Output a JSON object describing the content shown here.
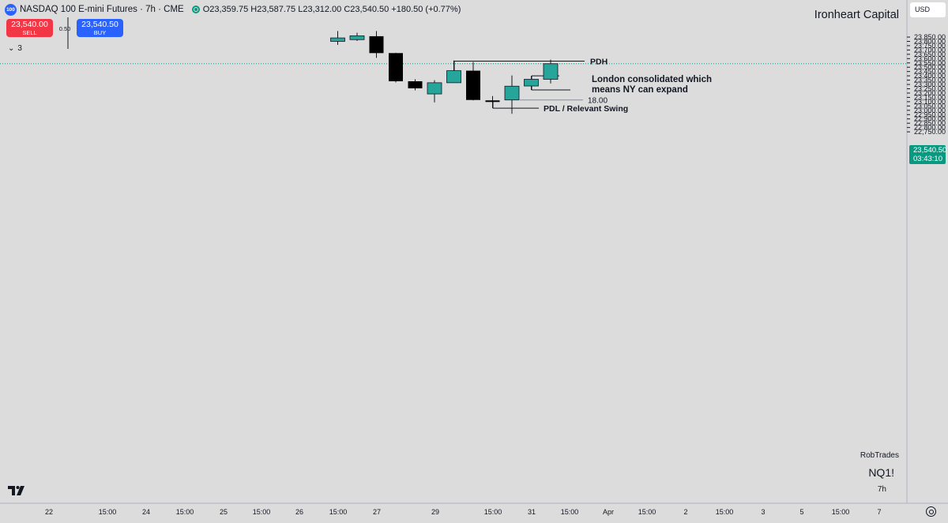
{
  "header": {
    "symbol_badge": "100",
    "title": "NASDAQ 100 E-mini Futures · 7h · CME",
    "ohlc": {
      "open": "O23,359.75",
      "high": "H23,587.75",
      "low": "L23,312.00",
      "close": "C23,540.50",
      "change": "+180.50 (+0.77%)"
    }
  },
  "trade": {
    "sell_price": "23,540.00",
    "sell_label": "SELL",
    "spread": "0.50",
    "buy_price": "23,540.50",
    "buy_label": "BUY",
    "indicators_count": "3"
  },
  "brand": "Ironheart Capital",
  "currency": "USD",
  "last_price": {
    "price": "23,540.50",
    "countdown": "03:43:10"
  },
  "watermark": {
    "author": "RobTrades",
    "symbol": "NQ1!",
    "interval": "7h"
  },
  "colors": {
    "background": "#dcdcdc",
    "up": "#26a69a",
    "down": "#000000",
    "sell": "#f23645",
    "buy": "#2962ff",
    "last_price": "#089981"
  },
  "chart_data": {
    "type": "candlestick",
    "y_ticks": [
      23850,
      23800,
      23750,
      23700,
      23650,
      23600,
      23550,
      23500,
      23450,
      23400,
      23350,
      23300,
      23250,
      23200,
      23150,
      23100,
      23050,
      23000,
      22950,
      22900,
      22850,
      22800,
      22750
    ],
    "y_tick_labels": [
      "23,850.00",
      "23,800.00",
      "23,750.00",
      "23,700.00",
      "23,650.00",
      "23,600.00",
      "23,550.00",
      "23,500.00",
      "23,450.00",
      "23,400.00",
      "23,350.00",
      "23,300.00",
      "23,250.00",
      "23,200.00",
      "23,150.00",
      "23,100.00",
      "23,050.00",
      "23,000.00",
      "22,950.00",
      "22,900.00",
      "22,850.00",
      "22,800.00",
      "22,750.00"
    ],
    "x_ticks": [
      "22",
      "15:00",
      "24",
      "15:00",
      "25",
      "15:00",
      "26",
      "15:00",
      "27",
      "29",
      "15:00",
      "31",
      "15:00",
      "Apr",
      "15:00",
      "2",
      "15:00",
      "3",
      "5",
      "15:00",
      "7"
    ],
    "candles": [
      {
        "o": 23800,
        "h": 23920,
        "l": 23760,
        "c": 23840
      },
      {
        "o": 23820,
        "h": 23900,
        "l": 23805,
        "c": 23865
      },
      {
        "o": 23860,
        "h": 23920,
        "l": 23608,
        "c": 23664
      },
      {
        "o": 23664,
        "h": 23668,
        "l": 23323,
        "c": 23337
      },
      {
        "o": 23337,
        "h": 23360,
        "l": 23232,
        "c": 23255
      },
      {
        "o": 23190,
        "h": 23350,
        "l": 23092,
        "c": 23320
      },
      {
        "o": 23320,
        "h": 23577,
        "l": 23320,
        "c": 23460
      },
      {
        "o": 23460,
        "h": 23560,
        "l": 23115,
        "c": 23120
      },
      {
        "o": 23115,
        "h": 23165,
        "l": 23025,
        "c": 23105
      },
      {
        "o": 23120,
        "h": 23405,
        "l": 22960,
        "c": 23280
      },
      {
        "o": 23282,
        "h": 23400,
        "l": 23235,
        "c": 23360
      },
      {
        "o": 23360,
        "h": 23587.75,
        "l": 23312,
        "c": 23540.5
      }
    ],
    "annotations": [
      {
        "label": "PDH",
        "price": 23571
      },
      {
        "label": "18.00",
        "price": 23120
      },
      {
        "label": "PDL / Relevant Swing",
        "price": 23025
      },
      {
        "label": "London consolidated which",
        "line2": "means NY can expand",
        "price": 23236
      }
    ],
    "last_price_line": 23540.5
  }
}
